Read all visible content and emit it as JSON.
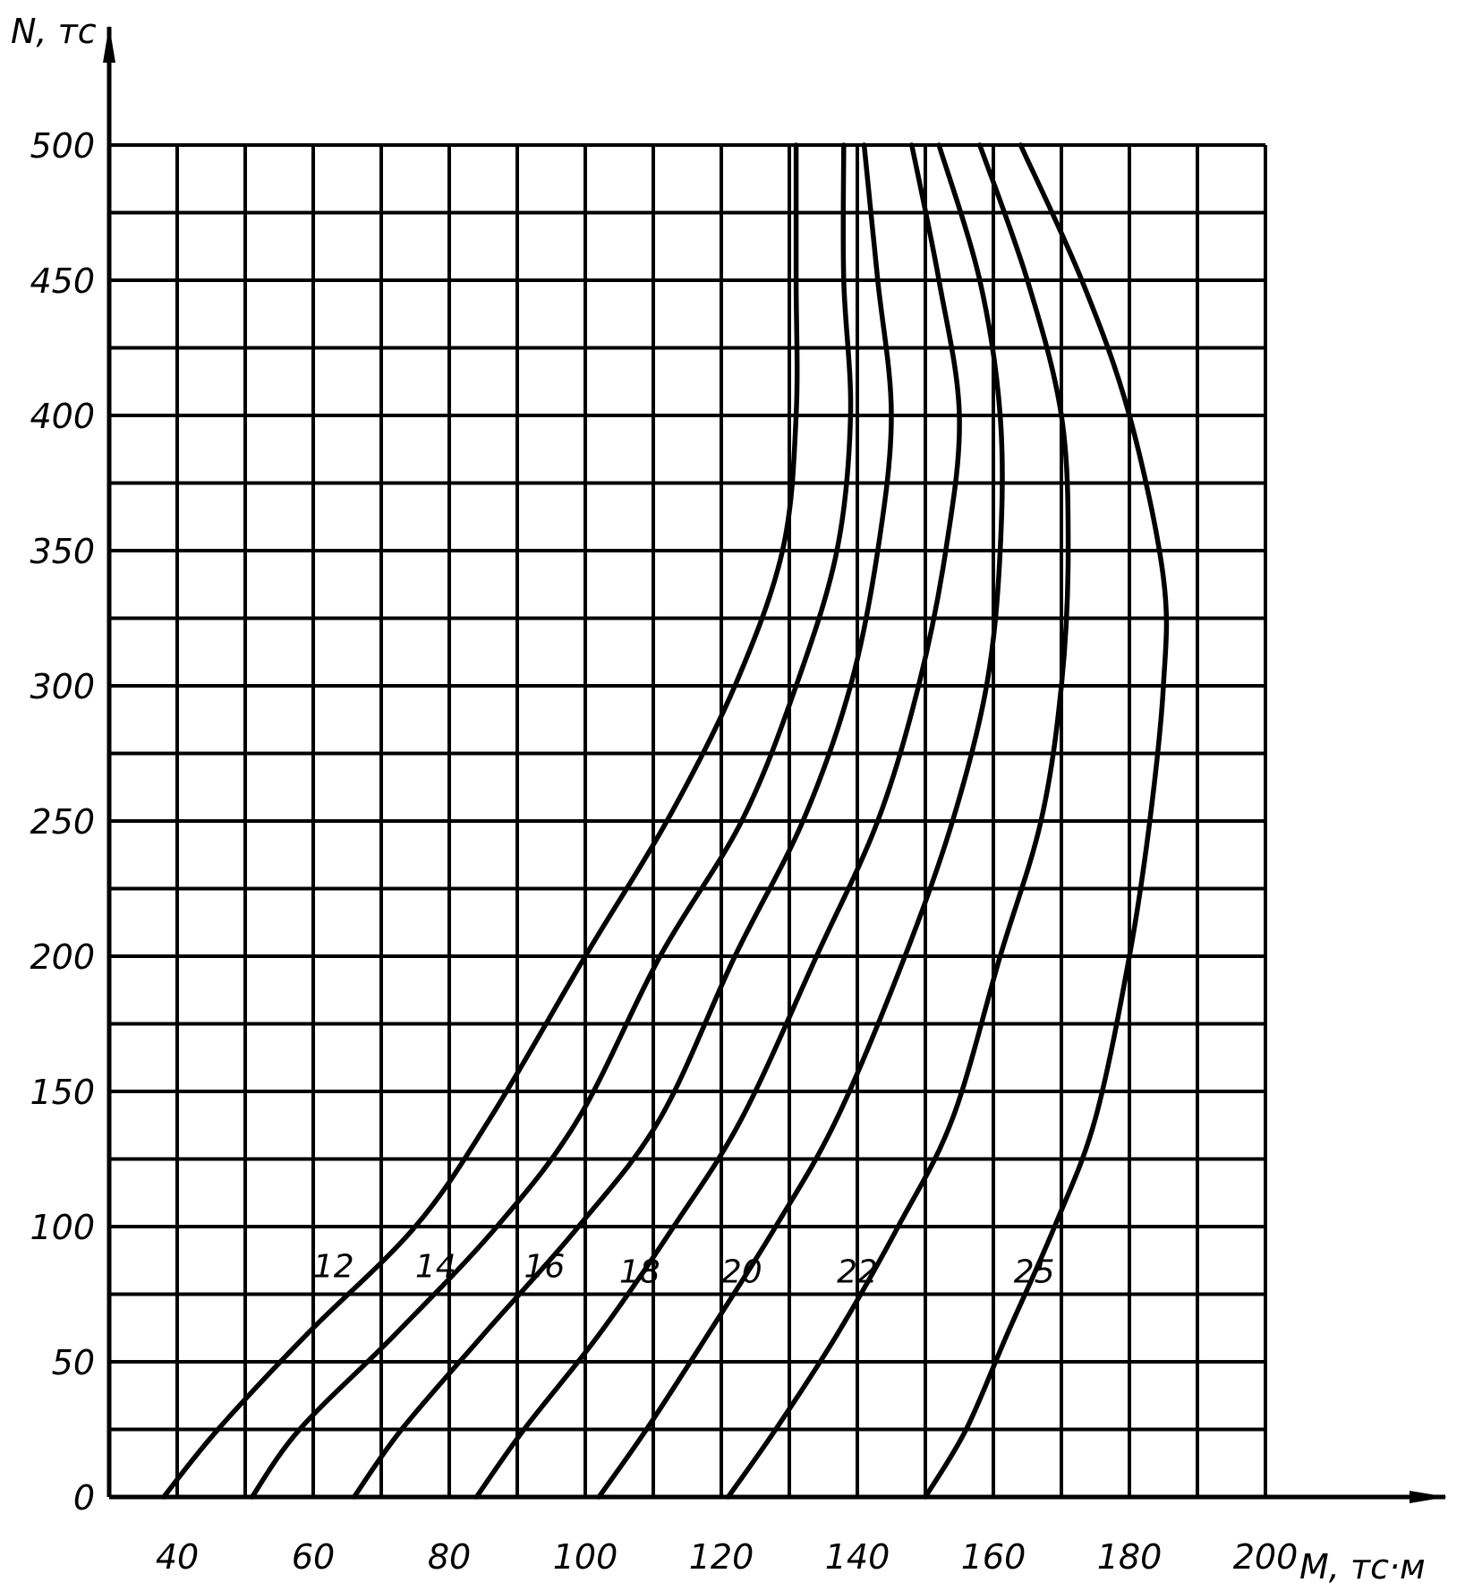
{
  "chart_data": {
    "type": "line",
    "title": "",
    "xlabel": "M, тс·м",
    "ylabel": "N, тс",
    "xlim": [
      30,
      200
    ],
    "ylim": [
      0,
      500
    ],
    "x_ticks": [
      40,
      60,
      80,
      100,
      120,
      140,
      160,
      180,
      200
    ],
    "y_ticks": [
      0,
      50,
      100,
      150,
      200,
      250,
      300,
      350,
      400,
      450,
      500
    ],
    "grid": true,
    "series": [
      {
        "name": "12",
        "points": [
          [
            38,
            0
          ],
          [
            46,
            25
          ],
          [
            59,
            60
          ],
          [
            75,
            100
          ],
          [
            86,
            140
          ],
          [
            100,
            200
          ],
          [
            112,
            250
          ],
          [
            122,
            300
          ],
          [
            129,
            350
          ],
          [
            131,
            400
          ],
          [
            131,
            450
          ],
          [
            131,
            500
          ]
        ]
      },
      {
        "name": "14",
        "points": [
          [
            51,
            0
          ],
          [
            58,
            25
          ],
          [
            72,
            60
          ],
          [
            87,
            100
          ],
          [
            99,
            140
          ],
          [
            111,
            200
          ],
          [
            123,
            250
          ],
          [
            131,
            300
          ],
          [
            137,
            350
          ],
          [
            139,
            400
          ],
          [
            138,
            450
          ],
          [
            138,
            500
          ]
        ]
      },
      {
        "name": "16",
        "points": [
          [
            66,
            0
          ],
          [
            73,
            25
          ],
          [
            85,
            60
          ],
          [
            99,
            100
          ],
          [
            111,
            140
          ],
          [
            122,
            200
          ],
          [
            132,
            250
          ],
          [
            139,
            300
          ],
          [
            143,
            350
          ],
          [
            145,
            400
          ],
          [
            143,
            450
          ],
          [
            141,
            500
          ]
        ]
      },
      {
        "name": "18",
        "points": [
          [
            84,
            0
          ],
          [
            91,
            25
          ],
          [
            102,
            60
          ],
          [
            113,
            100
          ],
          [
            123,
            140
          ],
          [
            134,
            200
          ],
          [
            143,
            250
          ],
          [
            149,
            300
          ],
          [
            153,
            350
          ],
          [
            155,
            400
          ],
          [
            152,
            450
          ],
          [
            148,
            500
          ]
        ]
      },
      {
        "name": "20",
        "points": [
          [
            102,
            0
          ],
          [
            109,
            25
          ],
          [
            118,
            60
          ],
          [
            128,
            100
          ],
          [
            137,
            140
          ],
          [
            147,
            200
          ],
          [
            154,
            250
          ],
          [
            159,
            300
          ],
          [
            161,
            350
          ],
          [
            161,
            400
          ],
          [
            158,
            450
          ],
          [
            152,
            500
          ]
        ]
      },
      {
        "name": "22",
        "points": [
          [
            121,
            0
          ],
          [
            128,
            25
          ],
          [
            137,
            60
          ],
          [
            146,
            100
          ],
          [
            154,
            140
          ],
          [
            161,
            200
          ],
          [
            167,
            250
          ],
          [
            170,
            300
          ],
          [
            171,
            350
          ],
          [
            170,
            400
          ],
          [
            165,
            450
          ],
          [
            158,
            500
          ]
        ]
      },
      {
        "name": "25",
        "points": [
          [
            150,
            0
          ],
          [
            156,
            25
          ],
          [
            162,
            60
          ],
          [
            169,
            100
          ],
          [
            175,
            140
          ],
          [
            180,
            200
          ],
          [
            183,
            250
          ],
          [
            185,
            300
          ],
          [
            185,
            340
          ],
          [
            180,
            400
          ],
          [
            173,
            450
          ],
          [
            164,
            500
          ]
        ]
      }
    ],
    "curve_labels": [
      {
        "text": "12",
        "x": 63,
        "y": 86
      },
      {
        "text": "14",
        "x": 78,
        "y": 86
      },
      {
        "text": "16",
        "x": 94,
        "y": 86
      },
      {
        "text": "18",
        "x": 108,
        "y": 84
      },
      {
        "text": "20",
        "x": 123,
        "y": 84
      },
      {
        "text": "22",
        "x": 140,
        "y": 84
      },
      {
        "text": "25",
        "x": 166,
        "y": 84
      }
    ]
  }
}
